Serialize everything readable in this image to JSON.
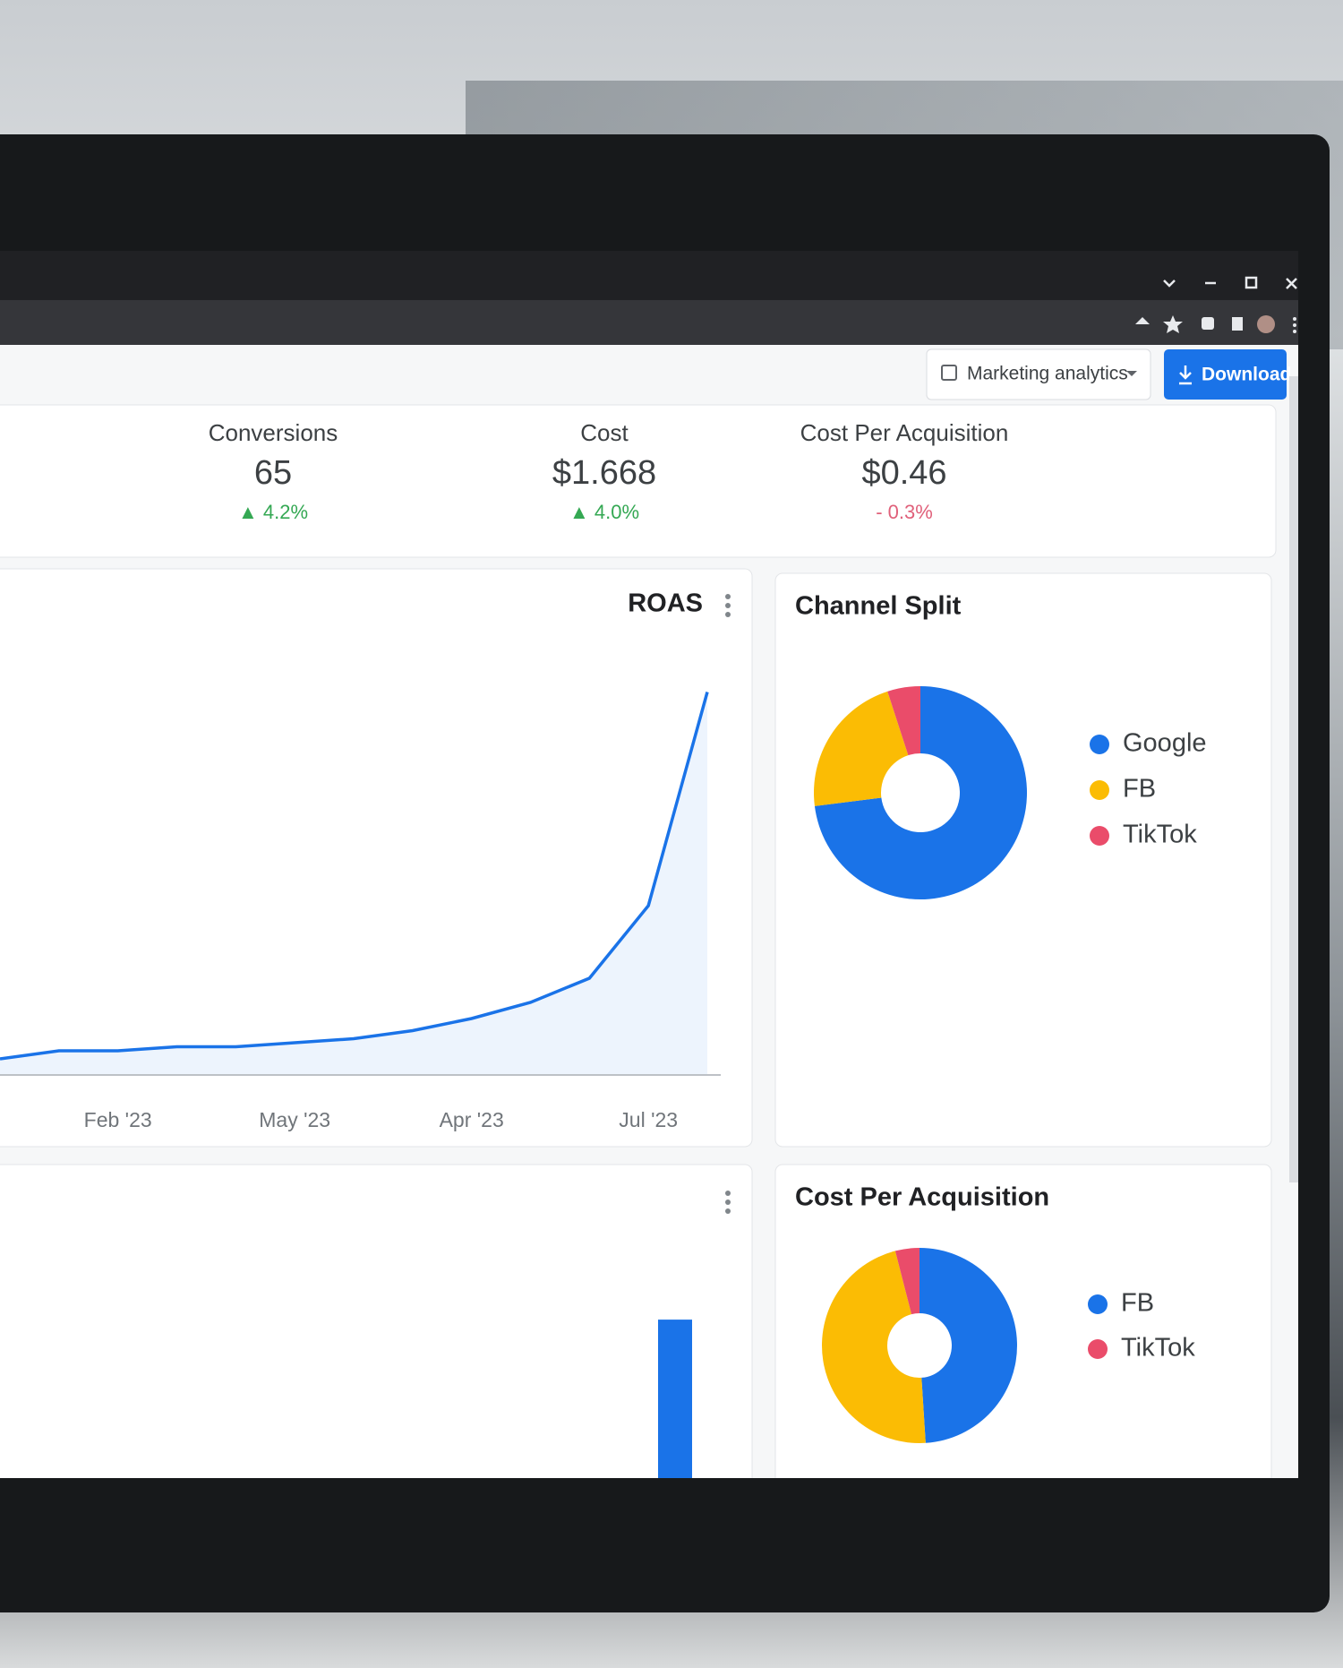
{
  "browser": {
    "menu_label": "Marketing analytics",
    "download_label": "Download"
  },
  "kpis": [
    {
      "label": "Conversions",
      "value": "65",
      "change": "▲ 4.2%",
      "change_color": "#34a853"
    },
    {
      "label": "Cost",
      "value": "$1.668",
      "change": "▲ 4.0%",
      "change_color": "#34a853"
    },
    {
      "label": "Cost Per Acquisition",
      "value": "$0.46",
      "change": "- 0.3%",
      "change_color": "#e0607a"
    }
  ],
  "chart_data": [
    {
      "type": "line",
      "title": "ROAS",
      "categories": [
        null,
        null,
        "Feb '23",
        null,
        null,
        "May '23",
        null,
        null,
        "Apr '23",
        null,
        null,
        "Jul '23",
        null
      ],
      "values": [
        4,
        6,
        6,
        7,
        7,
        8,
        9,
        11,
        14,
        18,
        24,
        42,
        95
      ],
      "color": "#1a73e8",
      "ylim": [
        0,
        100
      ]
    },
    {
      "type": "pie",
      "title": "Channel Split",
      "categories": [
        "Google",
        "FB",
        "TikTok"
      ],
      "values": [
        73,
        22,
        5
      ],
      "colors": [
        "#1a73e8",
        "#fbbc04",
        "#ea4c6a"
      ]
    },
    {
      "type": "bar",
      "categories": [
        null
      ],
      "values": [
        61
      ],
      "color": "#1a73e8",
      "ylim": [
        0,
        100
      ]
    },
    {
      "type": "pie",
      "title": "Cost Per Acquisition",
      "categories": [
        "FB",
        null,
        "TikTok"
      ],
      "values": [
        49,
        47,
        4
      ],
      "colors": [
        "#1a73e8",
        "#fbbc04",
        "#ea4c6a"
      ]
    }
  ]
}
